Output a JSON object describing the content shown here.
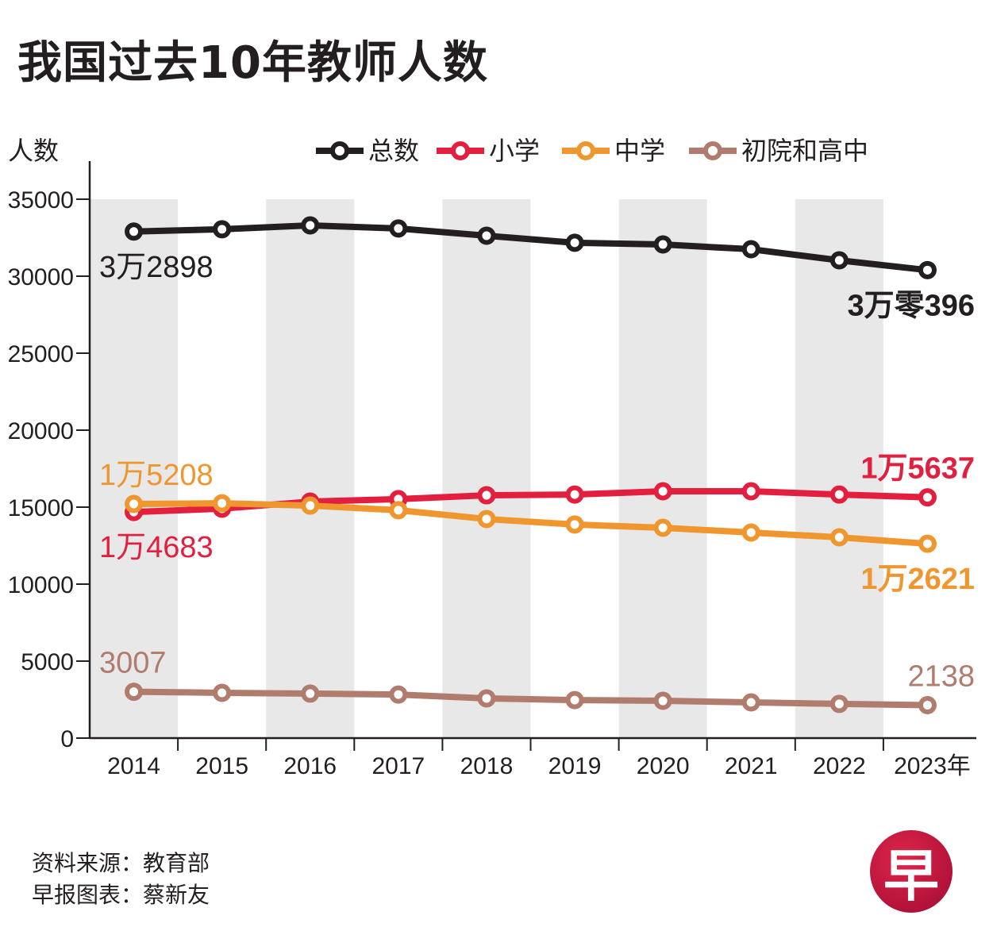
{
  "chart_data": {
    "type": "line",
    "title": "我国过去10年教师人数",
    "ylabel": "人数",
    "xlabel": "",
    "x": [
      "2014",
      "2015",
      "2016",
      "2017",
      "2018",
      "2019",
      "2020",
      "2021",
      "2022",
      "2023"
    ],
    "x_tick_labels": [
      "2014",
      "2015",
      "2016",
      "2017",
      "2018",
      "2019",
      "2020",
      "2021",
      "2022",
      "2023年"
    ],
    "ylim": [
      0,
      35000
    ],
    "y_ticks": [
      0,
      5000,
      10000,
      15000,
      20000,
      25000,
      30000,
      35000
    ],
    "y_tick_labels": [
      "0",
      "5000",
      "10000",
      "15000",
      "20000",
      "25000",
      "30000",
      "35000"
    ],
    "grid": false,
    "alternating_column_shading": true,
    "legend_position": "top-right",
    "series": [
      {
        "name": "总数",
        "color": "#231f20",
        "values": [
          32898,
          33050,
          33300,
          33100,
          32630,
          32170,
          32060,
          31750,
          31030,
          30396
        ],
        "annotations": [
          {
            "index": 0,
            "text": "3万2898",
            "position": "below",
            "bold": false
          },
          {
            "index": 9,
            "text": "3万零396",
            "position": "below",
            "bold": true
          }
        ]
      },
      {
        "name": "小学",
        "color": "#e21f3f",
        "values": [
          14683,
          14900,
          15360,
          15520,
          15770,
          15820,
          16030,
          16030,
          15820,
          15637
        ],
        "annotations": [
          {
            "index": 0,
            "text": "1万4683",
            "position": "below",
            "bold": false
          },
          {
            "index": 9,
            "text": "1万5637",
            "position": "above",
            "bold": true
          }
        ]
      },
      {
        "name": "中学",
        "color": "#f0962f",
        "values": [
          15208,
          15250,
          15100,
          14800,
          14230,
          13870,
          13660,
          13350,
          13040,
          12621
        ],
        "annotations": [
          {
            "index": 0,
            "text": "1万5208",
            "position": "above",
            "bold": false
          },
          {
            "index": 9,
            "text": "1万2621",
            "position": "below",
            "bold": true
          }
        ]
      },
      {
        "name": "初院和高中",
        "color": "#b07c6d",
        "values": [
          3007,
          2940,
          2890,
          2830,
          2580,
          2470,
          2420,
          2320,
          2220,
          2138
        ],
        "annotations": [
          {
            "index": 0,
            "text": "3007",
            "position": "above",
            "bold": false
          },
          {
            "index": 9,
            "text": "2138",
            "position": "above",
            "bold": false
          }
        ]
      }
    ]
  },
  "footer": {
    "source": "资料来源：教育部",
    "credit": "早报图表：蔡新友"
  },
  "logo": {
    "glyph": "早",
    "icon": "zaobao-logo-icon",
    "color": "#c8173f"
  }
}
